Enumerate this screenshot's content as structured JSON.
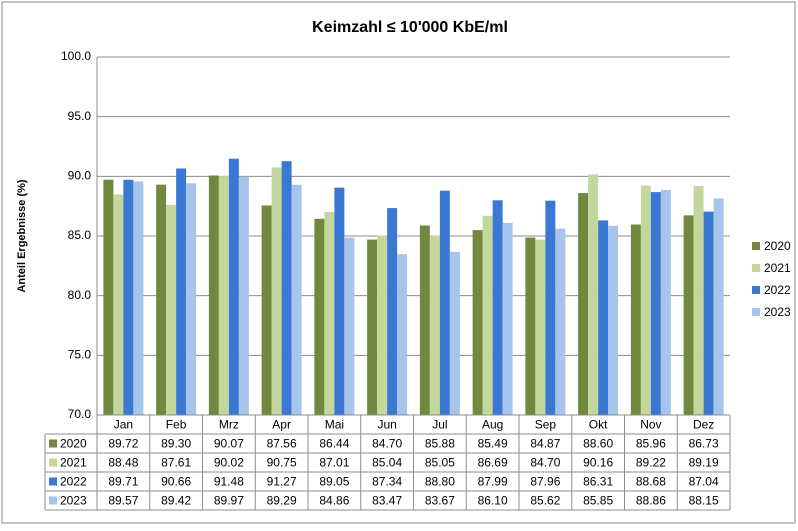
{
  "chart_data": {
    "type": "bar",
    "title": "Keimzahl ≤ 10'000 KbE/ml",
    "y_label": "Anteil Ergebnisse (%)",
    "categories": [
      "Jan",
      "Feb",
      "Mrz",
      "Apr",
      "Mai",
      "Jun",
      "Jul",
      "Aug",
      "Sep",
      "Okt",
      "Nov",
      "Dez"
    ],
    "series": [
      {
        "name": "2020",
        "color": "#71893f",
        "values": [
          89.72,
          89.3,
          90.07,
          87.56,
          86.44,
          84.7,
          85.88,
          85.49,
          84.87,
          88.6,
          85.96,
          86.73
        ],
        "value_labels": [
          "89.72",
          "89.30",
          "90.07",
          "87.56",
          "86.44",
          "84.70",
          "85.88",
          "85.49",
          "84.87",
          "88.60",
          "85.96",
          "86.73"
        ]
      },
      {
        "name": "2021",
        "color": "#c3d69b",
        "values": [
          88.48,
          87.61,
          90.02,
          90.75,
          87.01,
          85.04,
          85.05,
          86.69,
          84.7,
          90.16,
          89.22,
          89.19
        ],
        "value_labels": [
          "88.48",
          "87.61",
          "90.02",
          "90.75",
          "87.01",
          "85.04",
          "85.05",
          "86.69",
          "84.70",
          "90.16",
          "89.22",
          "89.19"
        ]
      },
      {
        "name": "2022",
        "color": "#3a78d4",
        "values": [
          89.71,
          90.66,
          91.48,
          91.27,
          89.05,
          87.34,
          88.8,
          87.99,
          87.96,
          86.31,
          88.68,
          87.04
        ],
        "value_labels": [
          "89.71",
          "90.66",
          "91.48",
          "91.27",
          "89.05",
          "87.34",
          "88.80",
          "87.99",
          "87.96",
          "86.31",
          "88.68",
          "87.04"
        ]
      },
      {
        "name": "2023",
        "color": "#a7c4ea",
        "values": [
          89.57,
          89.42,
          89.97,
          89.29,
          84.86,
          83.47,
          83.67,
          86.1,
          85.62,
          85.85,
          88.86,
          88.15
        ],
        "value_labels": [
          "89.57",
          "89.42",
          "89.97",
          "89.29",
          "84.86",
          "83.47",
          "83.67",
          "86.10",
          "85.62",
          "85.85",
          "88.86",
          "88.15"
        ]
      }
    ],
    "ylim": [
      70,
      100
    ],
    "yticks": [
      {
        "value": 70,
        "label": "70.0"
      },
      {
        "value": 75,
        "label": "75.0"
      },
      {
        "value": 80,
        "label": "80.0"
      },
      {
        "value": 85,
        "label": "85.0"
      },
      {
        "value": 90,
        "label": "90.0"
      },
      {
        "value": 95,
        "label": "95.0"
      },
      {
        "value": 100,
        "label": "100.0"
      }
    ],
    "grid": true,
    "legend": "right"
  }
}
